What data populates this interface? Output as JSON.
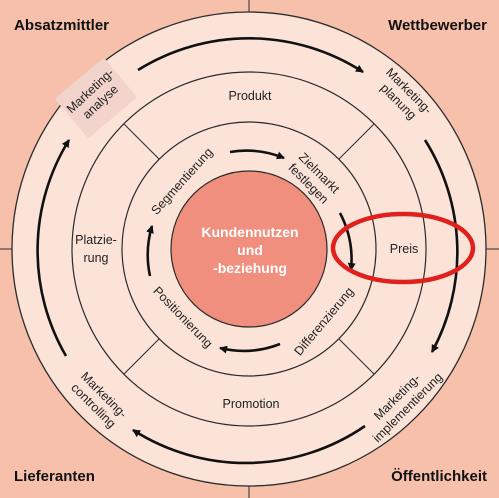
{
  "colors": {
    "background": "#f6c0ab",
    "ring_fill": "#fbe3d8",
    "center_fill": "#f08f7d",
    "line": "#2b2b2b",
    "highlight": "#e0201c",
    "analysis_box": "#f2d4cc"
  },
  "corners": {
    "top_left": "Absatzmittler",
    "top_right": "Wettbewerber",
    "bottom_left": "Lieferanten",
    "bottom_right": "Öffentlichkeit"
  },
  "outer_ring": {
    "analysis": [
      "Marketing-",
      "analyse"
    ],
    "planning": [
      "Marketing-",
      "planung"
    ],
    "implementation": [
      "Marketing-",
      "implementierung"
    ],
    "controlling": [
      "Marketing-",
      "controlling"
    ]
  },
  "marketing_mix": {
    "product": "Produkt",
    "price": "Preis",
    "promotion": "Promotion",
    "place": [
      "Platzie-",
      "rung"
    ]
  },
  "inner_ring": {
    "segmentation": "Segmentierung",
    "targeting": [
      "Zielmarkt",
      "festlegen"
    ],
    "differentiation": "Differenzierung",
    "positioning": "Positionierung"
  },
  "center": [
    "Kundennutzen",
    "und",
    "-beziehung"
  ],
  "highlight_target": "Preis"
}
